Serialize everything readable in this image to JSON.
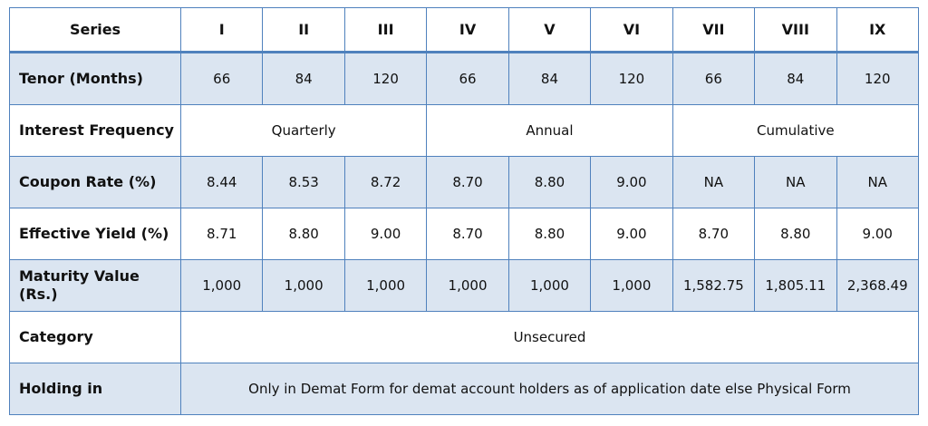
{
  "table": {
    "header": [
      "Series",
      "I",
      "II",
      "III",
      "IV",
      "V",
      "VI",
      "VII",
      "VIII",
      "IX"
    ],
    "rows": [
      [
        "Tenor (Months)",
        "66",
        "84",
        "120",
        "66",
        "84",
        "120",
        "66",
        "84",
        "120"
      ],
      [
        "Interest Frequency",
        "Quarterly",
        "Annual",
        "Cumulative"
      ],
      [
        "Coupon Rate (%)",
        "8.44",
        "8.53",
        "8.72",
        "8.70",
        "8.80",
        "9.00",
        "NA",
        "NA",
        "NA"
      ],
      [
        "Effective Yield (%)",
        "8.71",
        "8.80",
        "9.00",
        "8.70",
        "8.80",
        "9.00",
        "8.70",
        "8.80",
        "9.00"
      ],
      [
        "Maturity Value (Rs.)",
        "1,000",
        "1,000",
        "1,000",
        "1,000",
        "1,000",
        "1,000",
        "1,582.75",
        "1,805.11",
        "2,368.49"
      ],
      [
        "Category",
        "Unsecured"
      ],
      [
        "Holding in",
        "Only in Demat Form for demat account holders as of application date else Physical Form"
      ]
    ]
  }
}
